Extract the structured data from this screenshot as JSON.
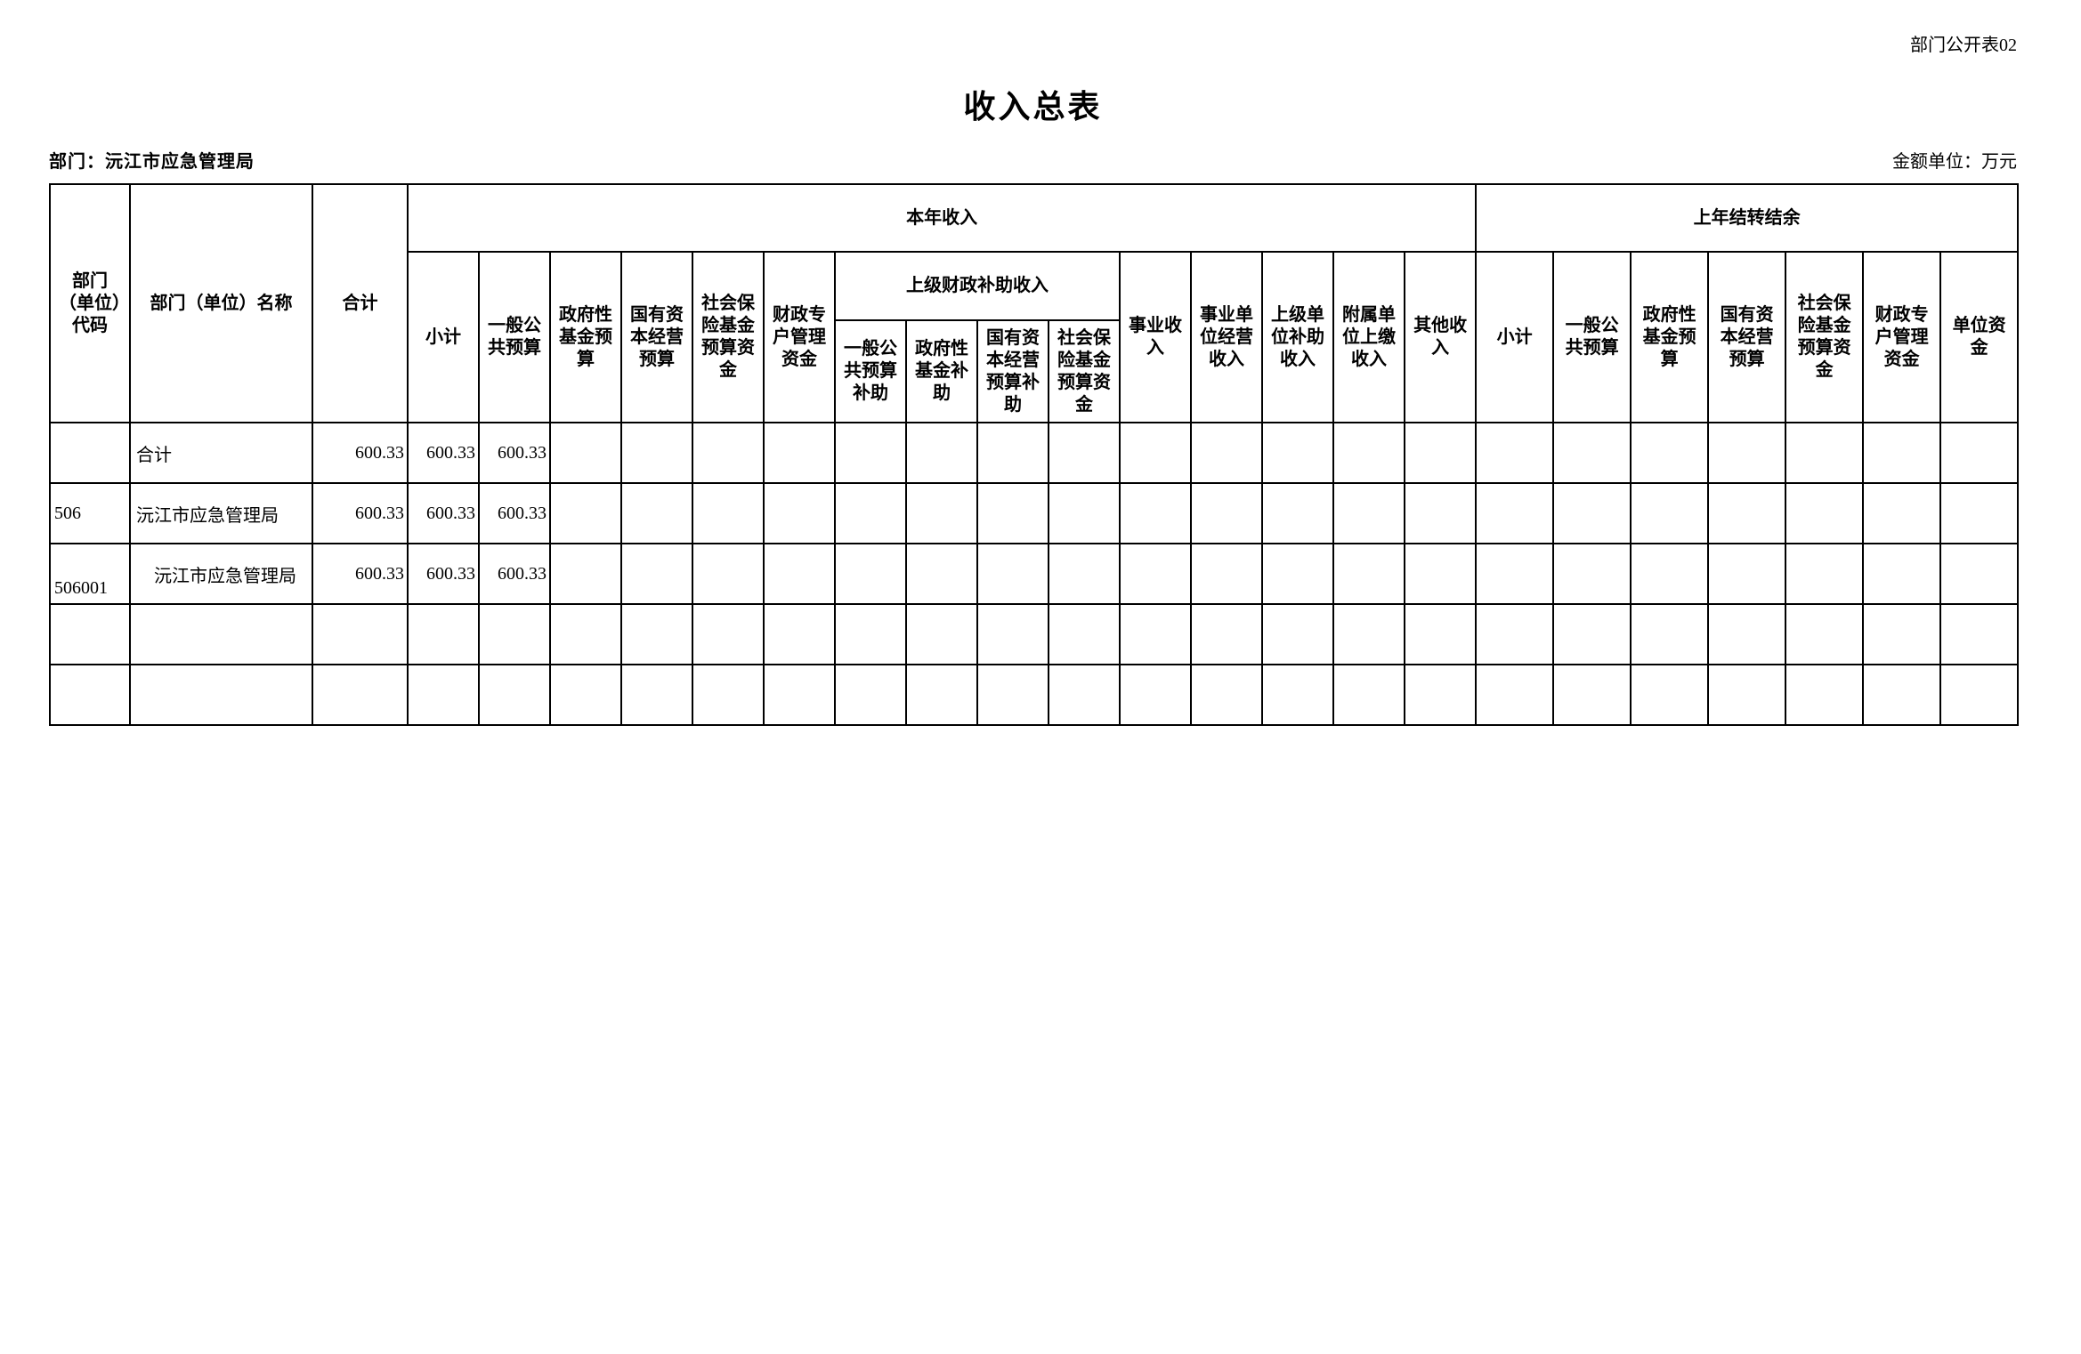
{
  "page": {
    "doc_label": "部门公开表02",
    "title": "收入总表",
    "department_label": "部门：沅江市应急管理局",
    "unit_label": "金额单位：万元"
  },
  "table": {
    "header": {
      "code": "部门（单位）代码",
      "name": "部门（单位）名称",
      "total": "合计",
      "current_year_group": "本年收入",
      "carryover_group": "上年结转结余",
      "subsidy_group": "上级财政补助收入",
      "current_year_cols": [
        "小计",
        "一般公共预算",
        "政府性基金预算",
        "国有资本经营预算",
        "社会保险基金预算资金",
        "财政专户管理资金"
      ],
      "subsidy_cols": [
        "一般公共预算补助",
        "政府性基金补助",
        "国有资本经营预算补助",
        "社会保险基金预算资金"
      ],
      "other_income_cols": [
        "事业收入",
        "事业单位经营收入",
        "上级单位补助收入",
        "附属单位上缴收入",
        "其他收入"
      ],
      "carryover_cols": [
        "小计",
        "一般公共预算",
        "政府性基金预算",
        "国有资本经营预算",
        "社会保险基金预算资金",
        "财政专户管理资金",
        "单位资金"
      ]
    },
    "rows": [
      {
        "cells": [
          "",
          "合计",
          "600.33",
          "600.33",
          "600.33",
          "",
          "",
          "",
          "",
          "",
          "",
          "",
          "",
          "",
          "",
          "",
          "",
          "",
          "",
          "",
          "",
          "",
          "",
          "",
          ""
        ]
      },
      {
        "cells": [
          "506",
          "沅江市应急管理局",
          "600.33",
          "600.33",
          "600.33",
          "",
          "",
          "",
          "",
          "",
          "",
          "",
          "",
          "",
          "",
          "",
          "",
          "",
          "",
          "",
          "",
          "",
          "",
          "",
          ""
        ]
      },
      {
        "cells": [
          "506001",
          "　沅江市应急管理局",
          "600.33",
          "600.33",
          "600.33",
          "",
          "",
          "",
          "",
          "",
          "",
          "",
          "",
          "",
          "",
          "",
          "",
          "",
          "",
          "",
          "",
          "",
          "",
          "",
          ""
        ]
      },
      {
        "cells": [
          "",
          "",
          "",
          "",
          "",
          "",
          "",
          "",
          "",
          "",
          "",
          "",
          "",
          "",
          "",
          "",
          "",
          "",
          "",
          "",
          "",
          "",
          "",
          "",
          ""
        ]
      },
      {
        "cells": [
          "",
          "",
          "",
          "",
          "",
          "",
          "",
          "",
          "",
          "",
          "",
          "",
          "",
          "",
          "",
          "",
          "",
          "",
          "",
          "",
          "",
          "",
          "",
          "",
          ""
        ]
      }
    ]
  }
}
